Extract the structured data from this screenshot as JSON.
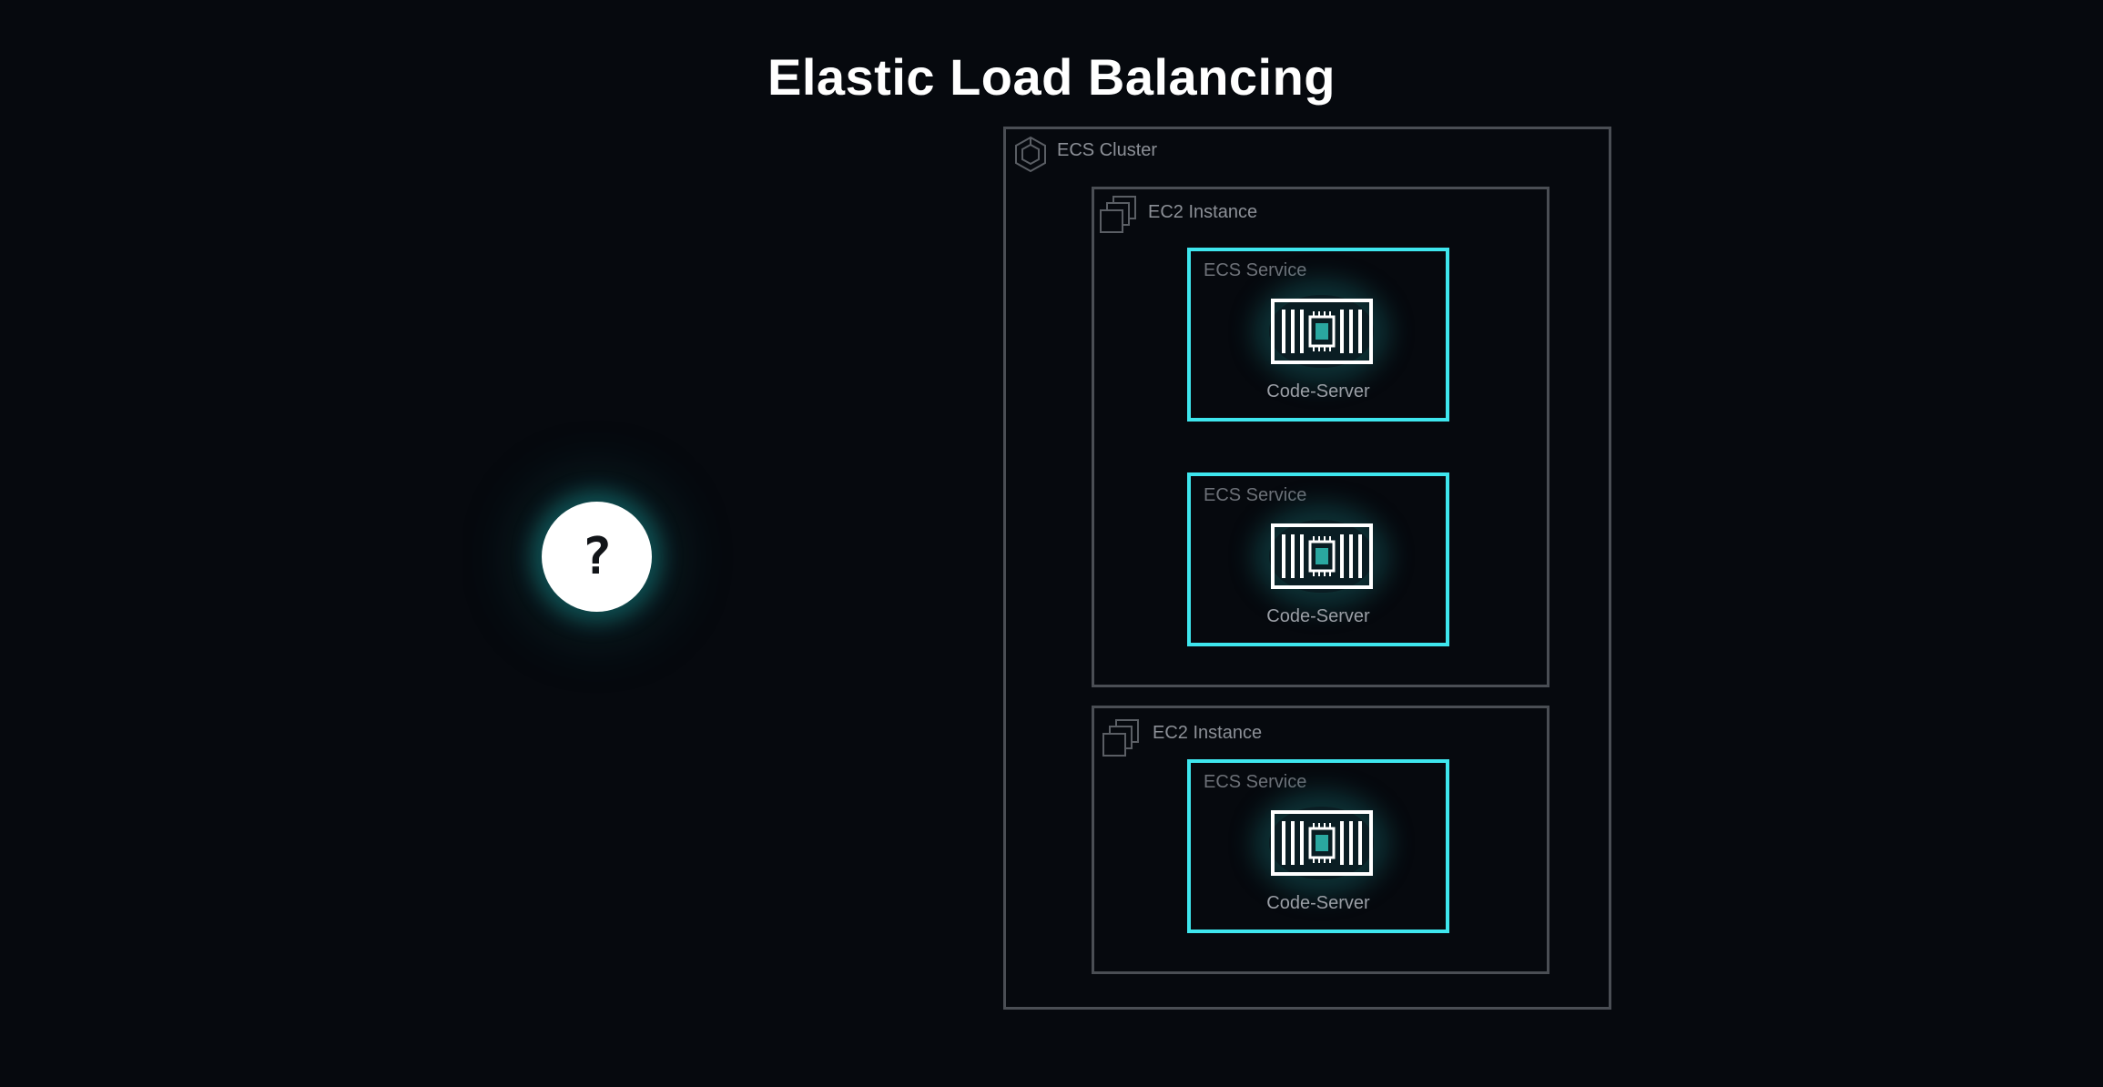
{
  "title": "Elastic Load Balancing",
  "unknown_node": {
    "symbol": "?"
  },
  "cluster": {
    "label": "ECS Cluster",
    "icon": "ecs-cluster-icon",
    "instances": [
      {
        "label": "EC2 Instance",
        "icon": "ec2-instance-icon",
        "services": [
          {
            "label": "ECS Service",
            "name": "Code-Server",
            "icon": "container-task-icon"
          },
          {
            "label": "ECS Service",
            "name": "Code-Server",
            "icon": "container-task-icon"
          }
        ]
      },
      {
        "label": "EC2 Instance",
        "icon": "ec2-instance-icon",
        "services": [
          {
            "label": "ECS Service",
            "name": "Code-Server",
            "icon": "container-task-icon"
          }
        ]
      }
    ]
  },
  "colors": {
    "background": "#06090e",
    "group_border": "#4a4e54",
    "service_border": "#3ee6ee",
    "glow": "#1a787a"
  }
}
